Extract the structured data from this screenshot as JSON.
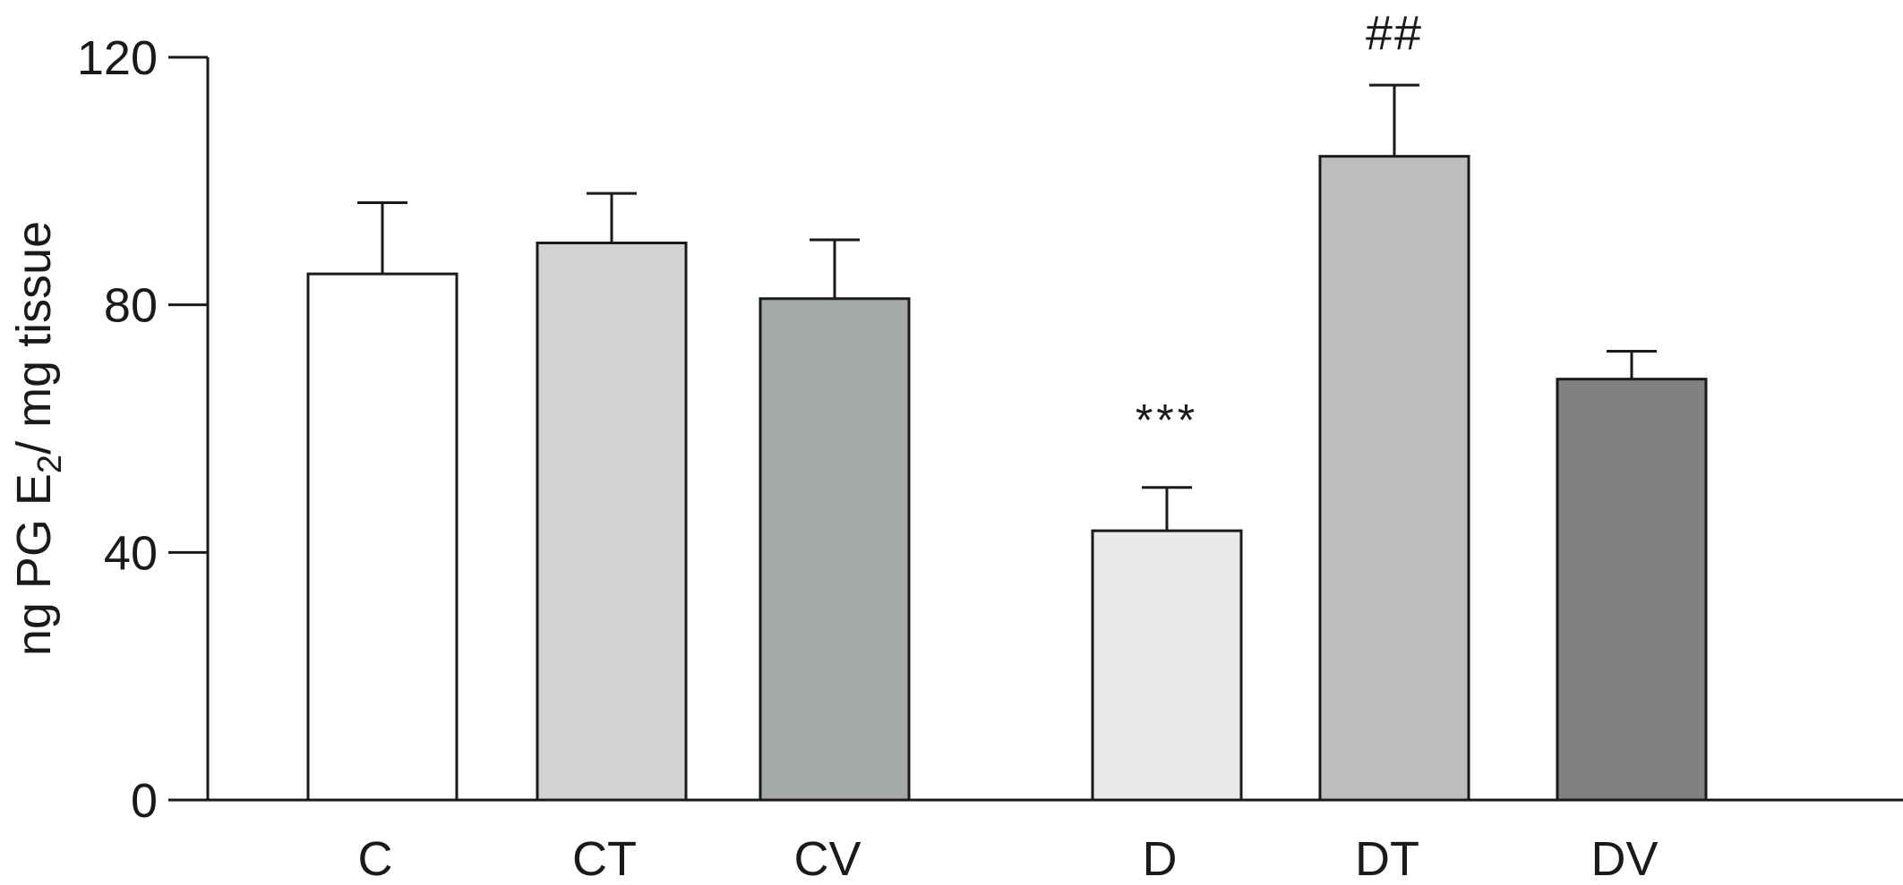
{
  "chart_data": {
    "type": "bar",
    "ylabel": {
      "prefix": "ng PG E",
      "subscript": "2",
      "suffix": "/ mg tissue"
    },
    "ylim": [
      0,
      120
    ],
    "yticks": [
      0,
      40,
      80,
      120
    ],
    "grid": false,
    "legend": "none",
    "categories": [
      "C",
      "CT",
      "CV",
      "D",
      "DT",
      "DV"
    ],
    "groups": [
      [
        "C",
        "CT",
        "CV"
      ],
      [
        "D",
        "DT",
        "DV"
      ]
    ],
    "values": [
      85,
      90,
      81,
      43.5,
      104,
      68
    ],
    "errors": [
      11.5,
      8,
      9.5,
      7,
      11.5,
      4.5
    ],
    "annotations": [
      "",
      "",
      "",
      "***",
      "##",
      ""
    ],
    "colors": [
      "#ffffff",
      "#d1d3d2",
      "#a7aaab",
      "#e8e9ea",
      "#bcbdbf",
      "#7f8182"
    ],
    "edge_color": "#1a1a1a"
  }
}
